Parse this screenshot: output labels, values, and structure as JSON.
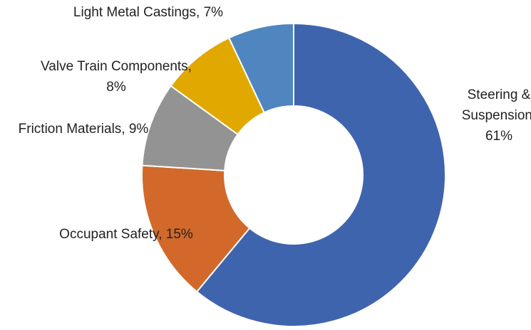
{
  "chart_data": {
    "type": "donut",
    "values": [
      61,
      15,
      9,
      8,
      7
    ],
    "value_labels": [
      [
        "Steering &",
        "Suspension,",
        "61%"
      ],
      [
        "Occupant Safety, 15%"
      ],
      [
        "Friction Materials, 9%"
      ],
      [
        "Valve Train Components,",
        "8%"
      ],
      [
        "Light Metal Castings, 7%"
      ]
    ],
    "colors": [
      "#3f64ae",
      "#d2692a",
      "#939393",
      "#e1a800",
      "#4f86bf"
    ]
  }
}
